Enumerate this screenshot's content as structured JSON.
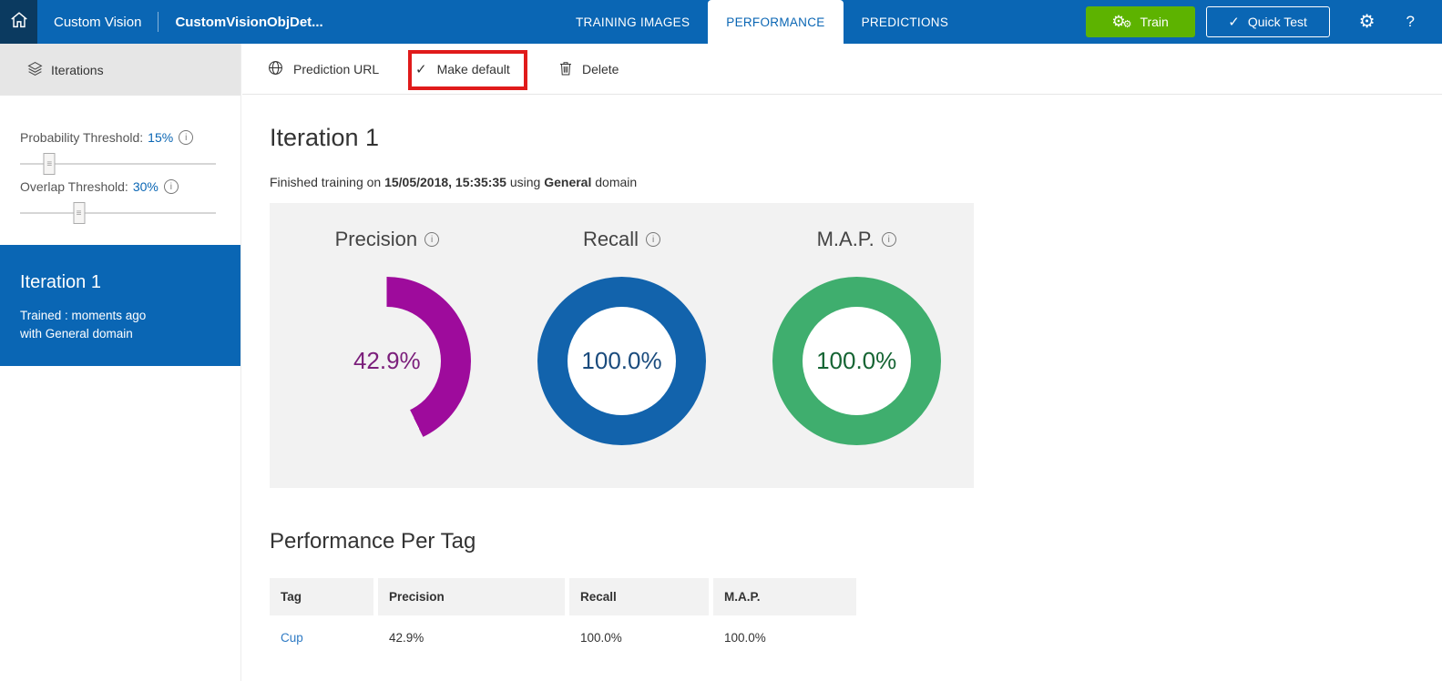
{
  "topbar": {
    "app_name": "Custom Vision",
    "project_name": "CustomVisionObjDet...",
    "tabs": [
      {
        "label": "TRAINING IMAGES",
        "active": false
      },
      {
        "label": "PERFORMANCE",
        "active": true
      },
      {
        "label": "PREDICTIONS",
        "active": false
      }
    ],
    "train_button": "Train",
    "quick_test_button": "Quick Test",
    "help_label": "?"
  },
  "sidebar": {
    "header": "Iterations",
    "probability_threshold": {
      "label": "Probability Threshold:",
      "value": "15%",
      "percent": 15
    },
    "overlap_threshold": {
      "label": "Overlap Threshold:",
      "value": "30%",
      "percent": 30
    },
    "iteration": {
      "title": "Iteration 1",
      "line1": "Trained : moments ago",
      "line2": "with General domain"
    }
  },
  "toolbar": {
    "prediction_url": "Prediction URL",
    "make_default": "Make default",
    "delete": "Delete"
  },
  "annotation": {
    "highlight_color": "#E01B1B"
  },
  "main": {
    "title": "Iteration 1",
    "training_info": {
      "prefix": "Finished training on ",
      "datetime": "15/05/2018, 15:35:35",
      "middle": " using ",
      "domain": "General",
      "suffix": " domain"
    },
    "charts": [
      {
        "label": "Precision",
        "value": "42.9%",
        "percent": 42.9,
        "ring_color": "#9E0B9C",
        "empty_color": "#F2F2F2",
        "hole_color": "#F2F2F2",
        "value_color": "#7B1F7B"
      },
      {
        "label": "Recall",
        "value": "100.0%",
        "percent": 100,
        "ring_color": "#1263AC",
        "empty_color": "#F2F2F2",
        "hole_color": "#FFFFFF",
        "value_color": "#1A4B7D"
      },
      {
        "label": "M.A.P.",
        "value": "100.0%",
        "percent": 100,
        "ring_color": "#3FAE6E",
        "empty_color": "#F2F2F2",
        "hole_color": "#FFFFFF",
        "value_color": "#156433"
      }
    ],
    "per_tag": {
      "title": "Performance Per Tag",
      "columns": [
        "Tag",
        "Precision",
        "Recall",
        "M.A.P."
      ],
      "rows": [
        {
          "tag": "Cup",
          "precision": "42.9%",
          "recall": "100.0%",
          "map": "100.0%"
        }
      ]
    }
  },
  "colors": {
    "header_blue": "#0A66B4",
    "home_square": "#0B3A60",
    "train_green": "#5DB300",
    "panel_gray": "#F2F2F2",
    "sidebar_header_gray": "#E6E6E6"
  }
}
